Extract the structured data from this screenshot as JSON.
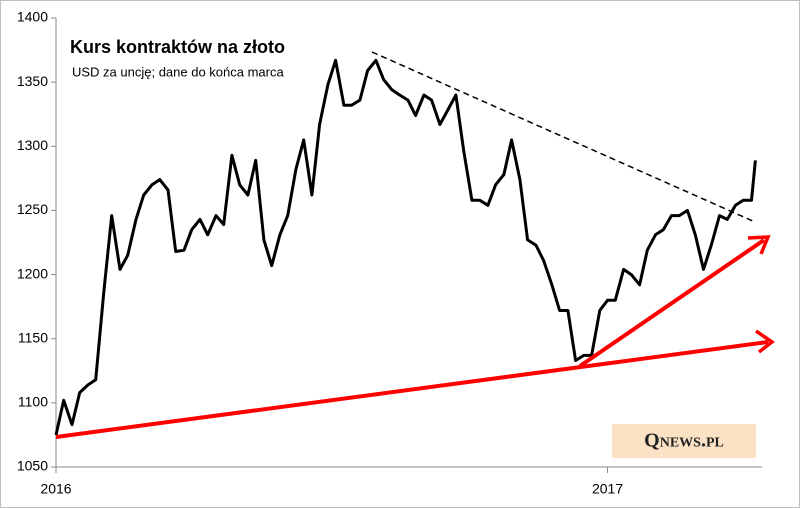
{
  "chart_data": {
    "type": "line",
    "title": "Kurs kontraktów na złoto",
    "subtitle": "USD za uncję; dane do końca marca",
    "logo": "Qnews.pl",
    "color": "#000000",
    "x": [
      2016.0,
      2016.014,
      2016.029,
      2016.043,
      2016.058,
      2016.072,
      2016.087,
      2016.101,
      2016.116,
      2016.13,
      2016.145,
      2016.159,
      2016.174,
      2016.188,
      2016.203,
      2016.217,
      2016.232,
      2016.246,
      2016.261,
      2016.275,
      2016.29,
      2016.304,
      2016.319,
      2016.333,
      2016.348,
      2016.362,
      2016.377,
      2016.391,
      2016.406,
      2016.42,
      2016.435,
      2016.449,
      2016.464,
      2016.478,
      2016.493,
      2016.507,
      2016.522,
      2016.536,
      2016.551,
      2016.565,
      2016.58,
      2016.594,
      2016.609,
      2016.623,
      2016.638,
      2016.652,
      2016.667,
      2016.681,
      2016.696,
      2016.71,
      2016.725,
      2016.739,
      2016.754,
      2016.768,
      2016.783,
      2016.797,
      2016.812,
      2016.826,
      2016.841,
      2016.855,
      2016.87,
      2016.884,
      2016.899,
      2016.913,
      2016.928,
      2016.942,
      2016.957,
      2016.971,
      2016.986,
      2017.0,
      2017.014,
      2017.029,
      2017.043,
      2017.058,
      2017.072,
      2017.087,
      2017.101,
      2017.116,
      2017.13,
      2017.145,
      2017.159,
      2017.174,
      2017.188,
      2017.203,
      2017.217,
      2017.232,
      2017.246,
      2017.261,
      2017.268
    ],
    "values": [
      1075,
      1102,
      1083,
      1108,
      1114,
      1118,
      1188,
      1246,
      1204,
      1215,
      1243,
      1262,
      1270,
      1274,
      1266,
      1218,
      1219,
      1235,
      1243,
      1231,
      1246,
      1239,
      1293,
      1270,
      1262,
      1289,
      1227,
      1207,
      1231,
      1246,
      1282,
      1305,
      1262,
      1317,
      1348,
      1367,
      1332,
      1332,
      1336,
      1359,
      1367,
      1352,
      1344,
      1340,
      1336,
      1324,
      1340,
      1336,
      1317,
      1328,
      1340,
      1297,
      1258,
      1258,
      1254,
      1270,
      1278,
      1305,
      1274,
      1227,
      1223,
      1211,
      1192,
      1172,
      1172,
      1133,
      1137,
      1137,
      1172,
      1180,
      1180,
      1204,
      1200,
      1192,
      1219,
      1231,
      1235,
      1246,
      1246,
      1250,
      1231,
      1204,
      1223,
      1246,
      1243,
      1254,
      1258,
      1258,
      1289
    ],
    "xlim": [
      2016,
      2017.28
    ],
    "xticks": [
      2016,
      2017
    ],
    "ylim": [
      1050,
      1400
    ],
    "yticks": [
      1050,
      1100,
      1150,
      1200,
      1250,
      1300,
      1350,
      1400
    ]
  }
}
